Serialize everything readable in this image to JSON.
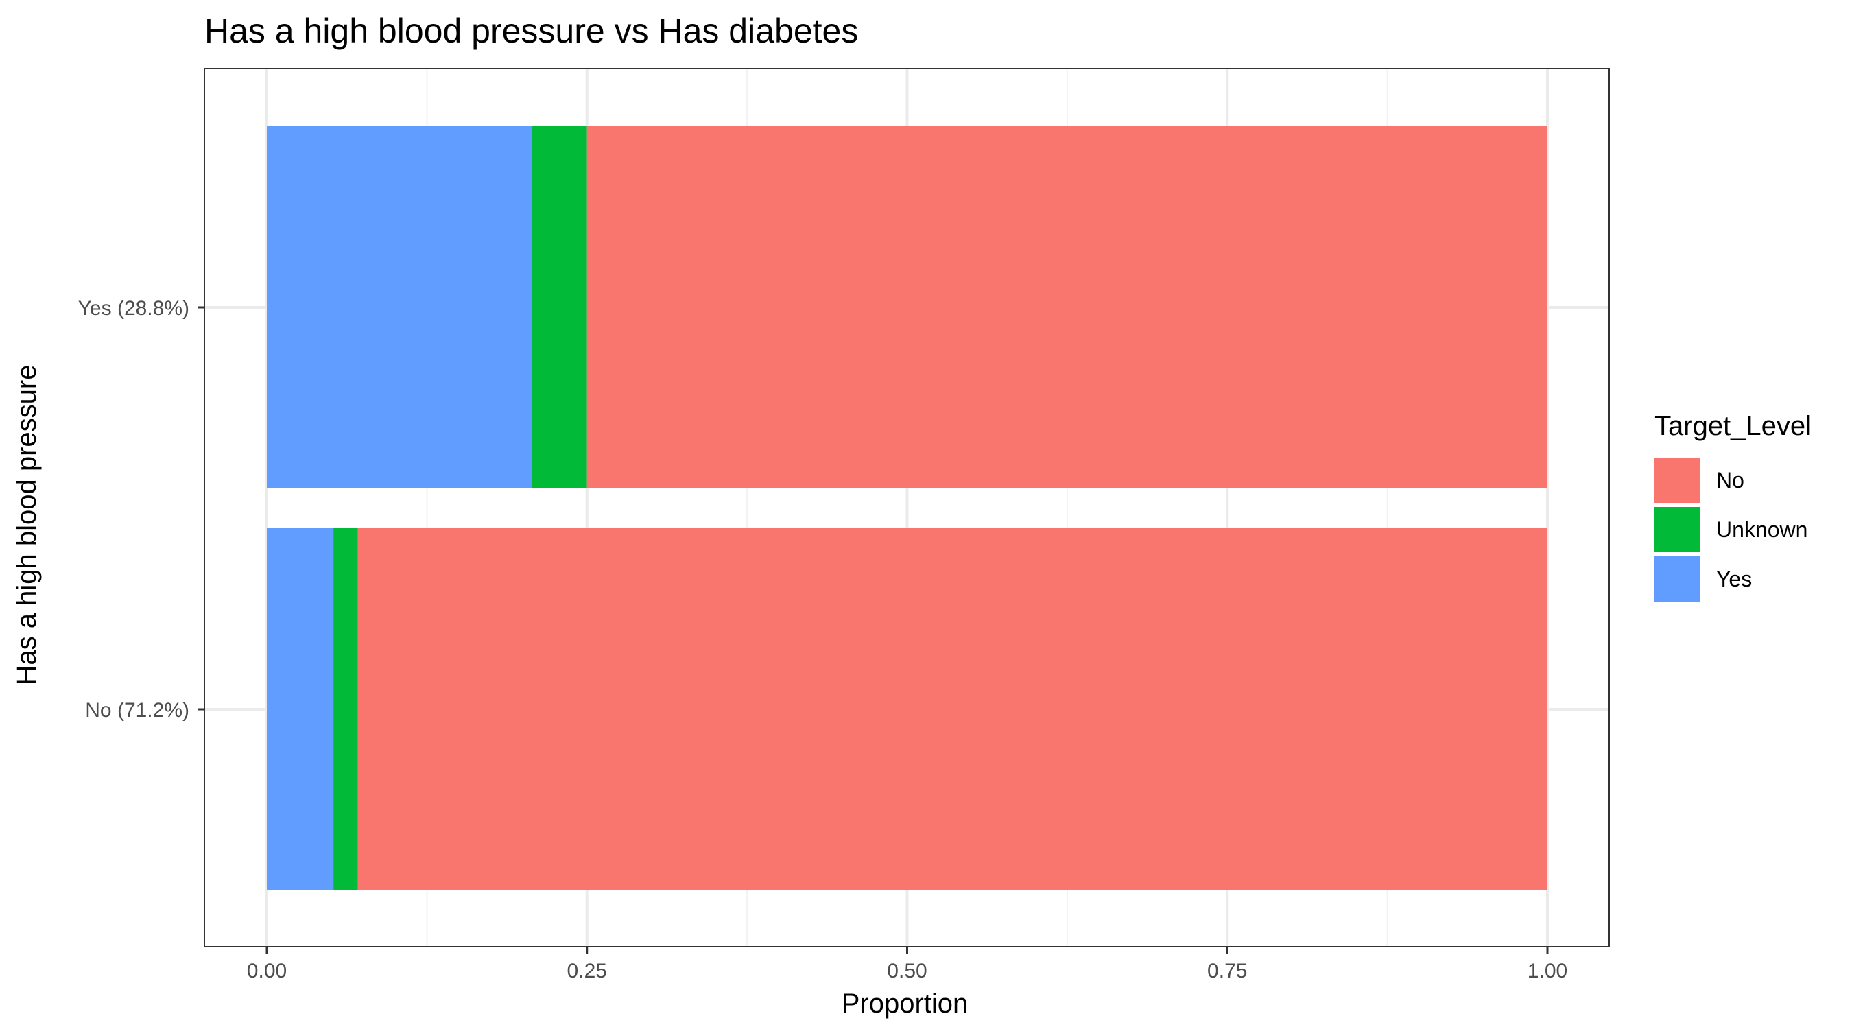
{
  "chart_data": {
    "type": "bar",
    "orientation": "horizontal",
    "stacked": true,
    "title": "Has a high blood pressure vs Has diabetes",
    "xlabel": "Proportion",
    "ylabel": "Has a high blood pressure",
    "xlim": [
      0,
      1
    ],
    "xticks": [
      "0.00",
      "0.25",
      "0.50",
      "0.75",
      "1.00"
    ],
    "categories": [
      "Yes (28.8%)",
      "No (71.2%)"
    ],
    "series": [
      {
        "name": "Yes",
        "color": "#619CFF",
        "values": [
          0.207,
          0.052
        ]
      },
      {
        "name": "Unknown",
        "color": "#00BA38",
        "values": [
          0.043,
          0.019
        ]
      },
      {
        "name": "No",
        "color": "#F8766D",
        "values": [
          0.75,
          0.929
        ]
      }
    ],
    "legend": {
      "title": "Target_Level",
      "position": "right",
      "entries": [
        {
          "label": "No",
          "color": "#F8766D"
        },
        {
          "label": "Unknown",
          "color": "#00BA38"
        },
        {
          "label": "Yes",
          "color": "#619CFF"
        }
      ]
    },
    "grid": true
  }
}
